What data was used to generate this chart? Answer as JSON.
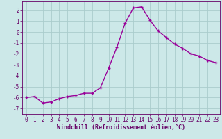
{
  "x": [
    0,
    1,
    2,
    3,
    4,
    5,
    6,
    7,
    8,
    9,
    10,
    11,
    12,
    13,
    14,
    15,
    16,
    17,
    18,
    19,
    20,
    21,
    22,
    23
  ],
  "y": [
    -6.0,
    -5.9,
    -6.5,
    -6.4,
    -6.1,
    -5.9,
    -5.8,
    -5.6,
    -5.6,
    -5.1,
    -3.3,
    -1.4,
    0.8,
    2.2,
    2.3,
    1.1,
    0.1,
    -0.5,
    -1.1,
    -1.5,
    -2.0,
    -2.2,
    -2.6,
    -2.8
  ],
  "line_color": "#990099",
  "marker": "+",
  "bg_color": "#cce8e8",
  "grid_color": "#aacccc",
  "xlabel": "Windchill (Refroidissement éolien,°C)",
  "xlim": [
    -0.5,
    23.5
  ],
  "ylim": [
    -7.5,
    2.8
  ],
  "yticks": [
    -7,
    -6,
    -5,
    -4,
    -3,
    -2,
    -1,
    0,
    1,
    2
  ],
  "font_color": "#660066",
  "font_size": 5.5,
  "xlabel_fontsize": 6.0,
  "line_width": 1.0,
  "marker_size": 3.5
}
